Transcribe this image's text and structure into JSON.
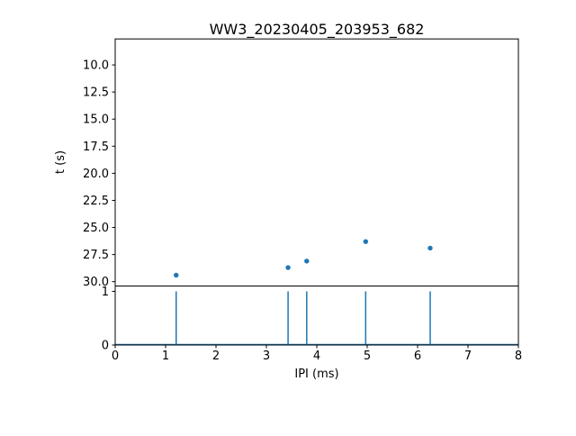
{
  "figure": {
    "title": "WW3_20230405_203953_682",
    "background_color": "#ffffff",
    "spine_color": "#000000",
    "accent_color": "#1f77b4"
  },
  "chart_data": [
    {
      "type": "scatter",
      "title": "WW3_20230405_203953_682",
      "ylabel": "t (s)",
      "xlabel": "",
      "xlim": [
        0,
        8
      ],
      "y_axis_inverted": true,
      "ylim_top_value": 7.6,
      "ylim_bottom_value": 30.4,
      "ytick_labels": [
        "10.0",
        "12.5",
        "15.0",
        "17.5",
        "20.0",
        "22.5",
        "25.0",
        "27.5",
        "30.0"
      ],
      "marker_color": "#1f77b4",
      "grid": false,
      "legend": "none",
      "points": [
        {
          "x": 1.21,
          "y": 29.4
        },
        {
          "x": 3.43,
          "y": 28.7
        },
        {
          "x": 3.8,
          "y": 28.1
        },
        {
          "x": 4.97,
          "y": 26.3
        },
        {
          "x": 6.25,
          "y": 26.9
        }
      ]
    },
    {
      "type": "stem",
      "title": "",
      "xlabel": "IPI (ms)",
      "ylabel": "",
      "xlim": [
        0,
        8
      ],
      "ylim": [
        0,
        1.1
      ],
      "xtick_labels": [
        "0",
        "1",
        "2",
        "3",
        "4",
        "5",
        "6",
        "7",
        "8"
      ],
      "ytick_labels": [
        "0",
        "1"
      ],
      "stem_color": "#1f77b4",
      "baseline_y": 0,
      "grid": false,
      "legend": "none",
      "stems": [
        {
          "x": 1.21,
          "height": 1
        },
        {
          "x": 3.43,
          "height": 1
        },
        {
          "x": 3.8,
          "height": 1
        },
        {
          "x": 4.97,
          "height": 1
        },
        {
          "x": 6.25,
          "height": 1
        }
      ]
    }
  ]
}
